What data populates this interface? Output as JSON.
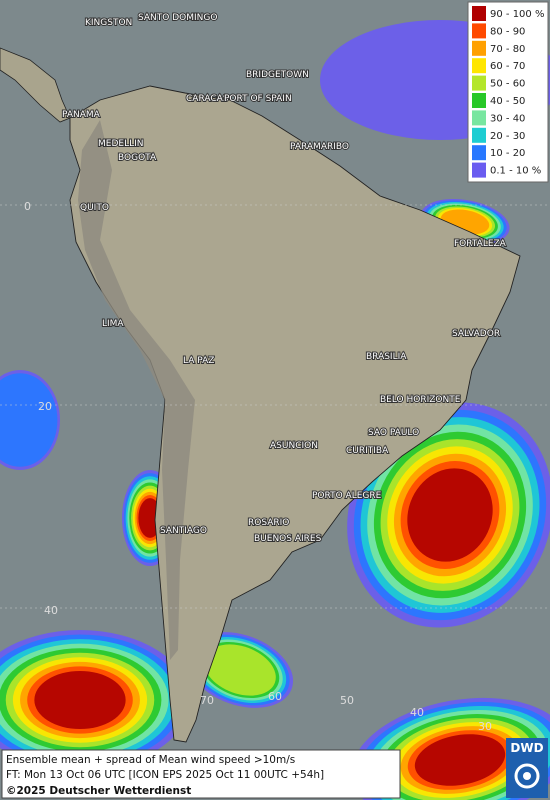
{
  "legend": [
    {
      "label": "90 - 100 %",
      "color": "#b00000"
    },
    {
      "label": "80 - 90",
      "color": "#ff4a00"
    },
    {
      "label": "70 - 80",
      "color": "#ffa000"
    },
    {
      "label": "60 - 70",
      "color": "#ffe600"
    },
    {
      "label": "50 - 60",
      "color": "#b4e62a"
    },
    {
      "label": "40 - 50",
      "color": "#28c828"
    },
    {
      "label": "30 - 40",
      "color": "#78e6a0"
    },
    {
      "label": "20 - 30",
      "color": "#1ecdd2"
    },
    {
      "label": "10 - 20",
      "color": "#2878ff"
    },
    {
      "label": "0.1 - 10 %",
      "color": "#6a5cf0"
    }
  ],
  "cities": [
    "KINGSTON",
    "SANTO DOMINGO",
    "BRIDGETOWN",
    "CARACAS",
    "PORT OF SPAIN",
    "PANAMA",
    "MEDELLIN",
    "BOGOTA",
    "PARAMARIBO",
    "QUITO",
    "FORTALEZA",
    "LIMA",
    "SALVADOR",
    "BRASILIA",
    "LA PAZ",
    "BELO HORIZONTE",
    "SAO PAULO",
    "ASUNCION",
    "CURITIBA",
    "PORTO ALEGRE",
    "SANTIAGO",
    "ROSARIO",
    "BUENOS AIRES"
  ],
  "grid_labels": [
    "0",
    "20",
    "40",
    "60",
    "50",
    "40",
    "30",
    "70"
  ],
  "footer": {
    "line1": "Ensemble mean + spread of Mean wind speed >10m/s",
    "line2": "FT: Mon 13 Oct 06 UTC [ICON EPS 2025 Oct 11 00UTC +54h]",
    "line3": "©2025 Deutscher Wetterdienst"
  },
  "logo": "DWD"
}
